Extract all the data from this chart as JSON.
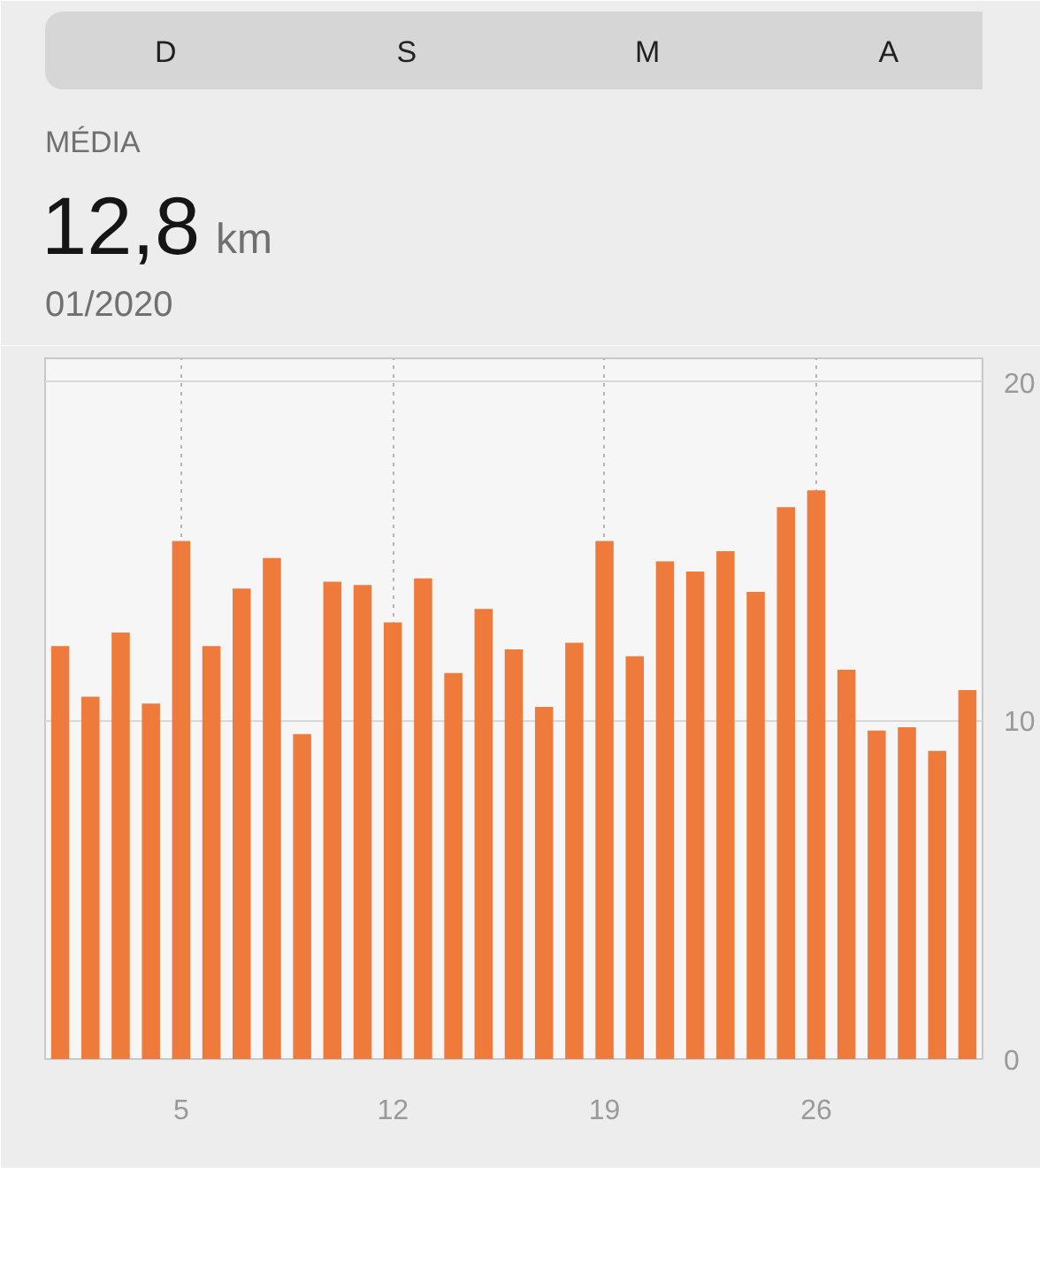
{
  "chart_data": {
    "type": "bar",
    "title": "MÉDIA",
    "subtitle": "01/2020",
    "annotations": [
      "D",
      "S",
      "M",
      "A",
      "12,8 km"
    ],
    "x": [
      1,
      2,
      3,
      4,
      5,
      6,
      7,
      8,
      9,
      10,
      11,
      12,
      13,
      14,
      15,
      16,
      17,
      18,
      19,
      20,
      21,
      22,
      23,
      24,
      25,
      26,
      27,
      28,
      29,
      30,
      31
    ],
    "values": [
      12.2,
      10.7,
      12.6,
      10.5,
      15.3,
      12.2,
      13.9,
      14.8,
      9.6,
      14.1,
      14.0,
      12.9,
      14.2,
      11.4,
      13.3,
      12.1,
      10.4,
      12.3,
      15.3,
      11.9,
      14.7,
      14.4,
      15.0,
      13.8,
      16.3,
      16.8,
      11.5,
      9.7,
      9.8,
      9.1,
      10.9
    ],
    "color": "#ee7a3c",
    "xlim": [
      0.5,
      31.5
    ],
    "xticks": [
      5,
      12,
      19,
      26
    ],
    "ylim": [
      0,
      20.7
    ],
    "yticks": [
      0,
      10,
      20
    ],
    "grid": true
  }
}
